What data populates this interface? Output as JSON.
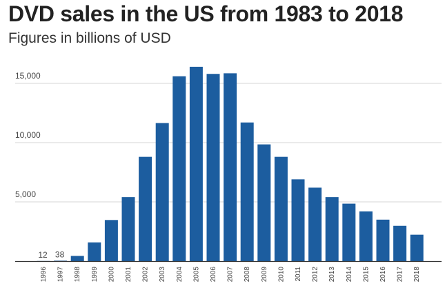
{
  "chart_data": {
    "type": "bar",
    "title": "DVD sales in the US from 1983 to 2018",
    "subtitle": "Figures in billions of USD",
    "xlabel": "",
    "ylabel": "",
    "ylim": [
      0,
      16500
    ],
    "yticks": [
      5000,
      10000,
      15000
    ],
    "ytick_labels": [
      "5,000",
      "10,000",
      "15,000"
    ],
    "grid": true,
    "bar_color": "#1c5d9f",
    "categories": [
      "1996",
      "1997",
      "1998",
      "1999",
      "2000",
      "2001",
      "2002",
      "2003",
      "2004",
      "2005",
      "2006",
      "2007",
      "2008",
      "2009",
      "2010",
      "2011",
      "2012",
      "2013",
      "2014",
      "2015",
      "2016",
      "2017",
      "2018"
    ],
    "values": [
      12,
      38,
      440,
      1580,
      3470,
      5400,
      8800,
      11650,
      15600,
      16400,
      15800,
      15850,
      11700,
      9850,
      8800,
      6900,
      6200,
      5400,
      4850,
      4200,
      3500,
      2980,
      2230
    ],
    "data_labels": [
      {
        "index": 0,
        "text": "12"
      },
      {
        "index": 1,
        "text": "38"
      }
    ]
  }
}
